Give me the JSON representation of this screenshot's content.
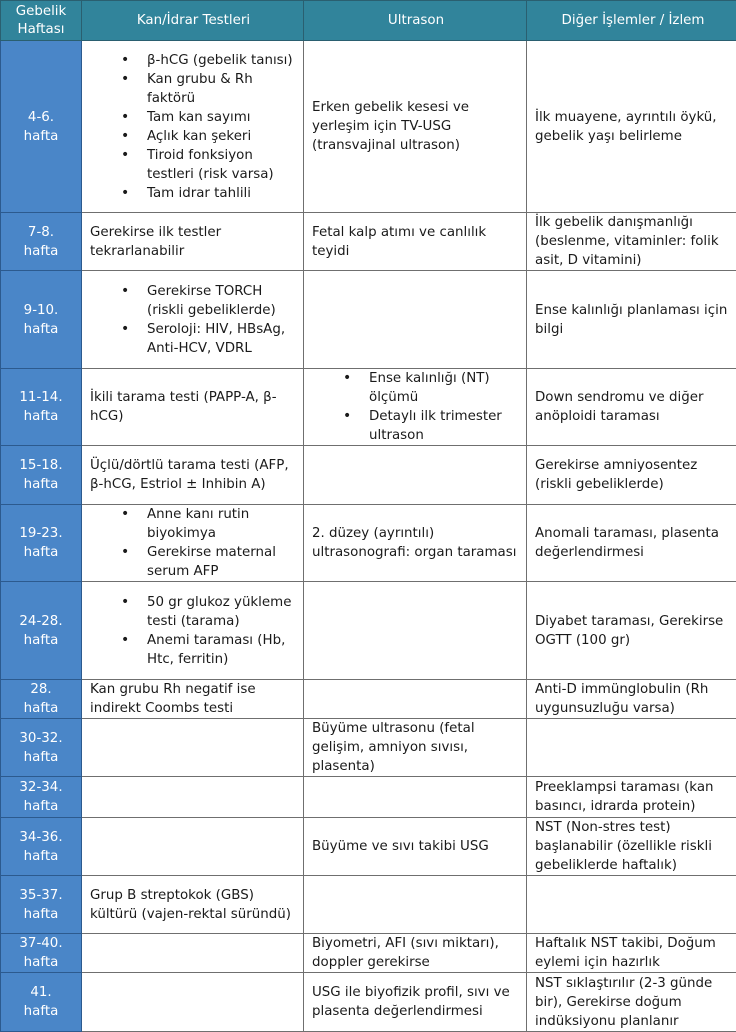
{
  "colors": {
    "header_bg": "#31849b",
    "week_bg": "#4a86c8",
    "header_text": "#ffffff"
  },
  "headers": [
    "Gebelik Haftası",
    "Kan/İdrar Testleri",
    "Ultrason",
    "Diğer İşlemler / İzlem"
  ],
  "rows": [
    {
      "week": [
        "4-6.",
        "hafta"
      ],
      "tests": [
        "β-hCG (gebelik tanısı)",
        "Kan grubu & Rh faktörü",
        "Tam kan sayımı",
        "Açlık kan şekeri",
        "Tiroid fonksiyon testleri (risk varsa)",
        "Tam idrar tahlili"
      ],
      "ultrasound": "Erken gebelik kesesi ve yerleşim için TV-USG (transvajinal ultrason)",
      "other": "İlk muayene, ayrıntılı öykü, gebelik yaşı belirleme"
    },
    {
      "week": [
        "7-8.",
        "hafta"
      ],
      "tests": "Gerekirse ilk testler tekrarlanabilir",
      "ultrasound": "Fetal kalp atımı ve canlılık teyidi",
      "other": "İlk gebelik danışmanlığı (beslenme, vitaminler: folik asit, D vitamini)"
    },
    {
      "week": [
        "9-10.",
        "hafta"
      ],
      "tests": [
        "Gerekirse TORCH (riskli gebeliklerde)",
        "Seroloji: HIV, HBsAg, Anti-HCV, VDRL"
      ],
      "ultrasound": "",
      "other": "Ense kalınlığı planlaması için bilgi"
    },
    {
      "week": [
        "11-14.",
        "hafta"
      ],
      "tests": "İkili tarama testi (PAPP-A, β-hCG)",
      "ultrasound": [
        "Ense kalınlığı (NT) ölçümü",
        "Detaylı ilk trimester ultrason"
      ],
      "other": "Down sendromu ve diğer anöploidi taraması"
    },
    {
      "week": [
        "15-18.",
        "hafta"
      ],
      "tests": "Üçlü/dörtlü tarama testi (AFP, β-hCG, Estriol ± Inhibin A)",
      "ultrasound": "",
      "other": "Gerekirse amniyosentez (riskli gebeliklerde)"
    },
    {
      "week": [
        "19-23.",
        "hafta"
      ],
      "tests": [
        "Anne kanı rutin biyokimya",
        "Gerekirse maternal serum AFP"
      ],
      "ultrasound": "2. düzey (ayrıntılı) ultrasonografi: organ taraması",
      "other": "Anomali taraması, plasenta değerlendirmesi"
    },
    {
      "week": [
        "24-28.",
        "hafta"
      ],
      "tests": [
        "50 gr glukoz yükleme testi (tarama)",
        "Anemi taraması (Hb, Htc, ferritin)"
      ],
      "ultrasound": "",
      "other": "Diyabet taraması, Gerekirse OGTT (100 gr)"
    },
    {
      "week": [
        "28.",
        "hafta"
      ],
      "tests": "Kan grubu Rh negatif ise indirekt Coombs testi",
      "ultrasound": "",
      "other": "Anti-D immünglobulin (Rh uygunsuzluğu varsa)"
    },
    {
      "week": [
        "30-32.",
        "hafta"
      ],
      "tests": "",
      "ultrasound": "Büyüme ultrasonu (fetal gelişim, amniyon sıvısı, plasenta)",
      "other": ""
    },
    {
      "week": [
        "32-34.",
        "hafta"
      ],
      "tests": "",
      "ultrasound": "",
      "other": "Preeklampsi taraması (kan basıncı, idrarda protein)"
    },
    {
      "week": [
        "34-36.",
        "hafta"
      ],
      "tests": "",
      "ultrasound": "Büyüme ve sıvı takibi USG",
      "other": "NST (Non-stres test) başlanabilir (özellikle riskli gebeliklerde haftalık)"
    },
    {
      "week": [
        "35-37.",
        "hafta"
      ],
      "tests": "Grup B streptokok (GBS) kültürü (vajen-rektal süründü)",
      "ultrasound": "",
      "other": ""
    },
    {
      "week": [
        "37-40.",
        "hafta"
      ],
      "tests": "",
      "ultrasound": "Biyometri, AFI (sıvı miktarı), doppler gerekirse",
      "other": "Haftalık NST takibi, Doğum eylemi için hazırlık"
    },
    {
      "week": [
        "41.",
        "hafta"
      ],
      "tests": "",
      "ultrasound": "USG ile biyofizik profil, sıvı ve plasenta değerlendirmesi",
      "other": "NST sıklaştırılır (2-3 günde bir), Gerekirse doğum indüksiyonu planlanır"
    }
  ]
}
